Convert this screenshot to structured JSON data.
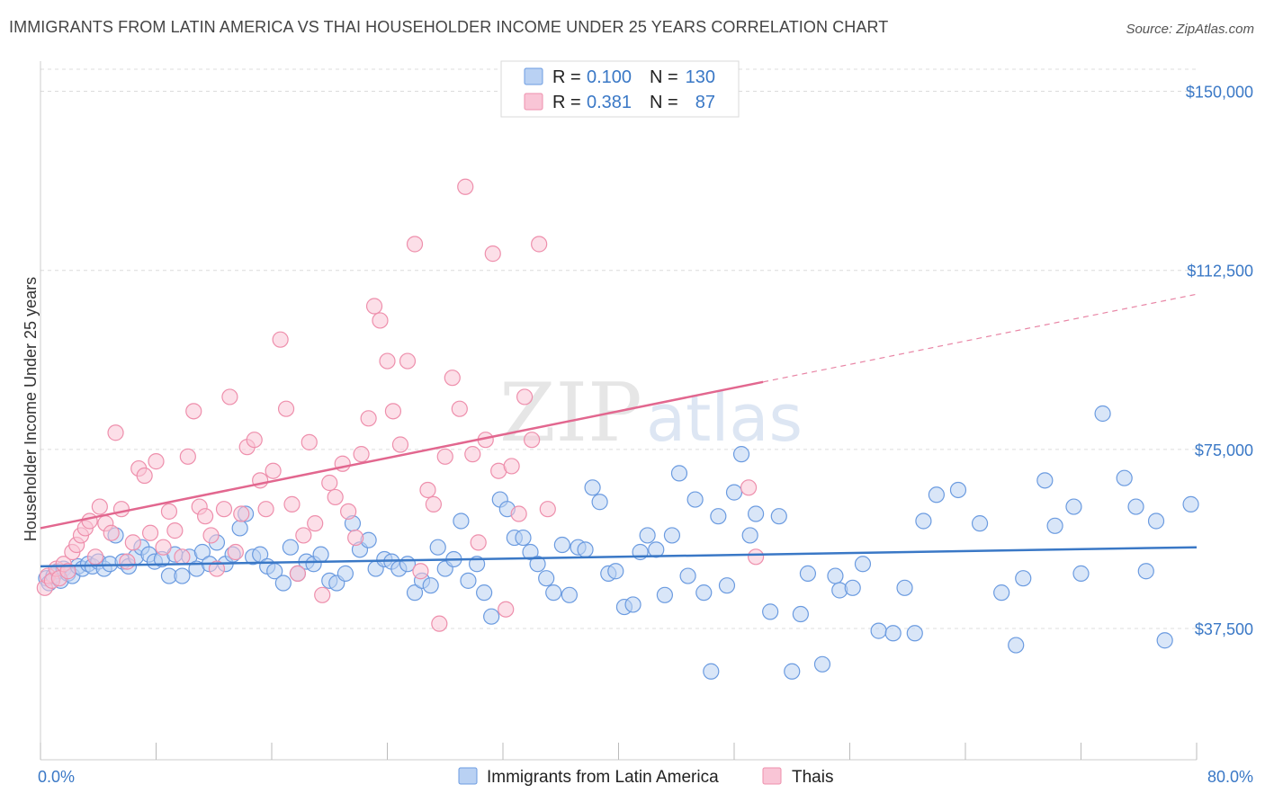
{
  "title": "IMMIGRANTS FROM LATIN AMERICA VS THAI HOUSEHOLDER INCOME UNDER 25 YEARS CORRELATION CHART",
  "source": "Source: ZipAtlas.com",
  "watermark": {
    "part1": "ZIP",
    "part2": "atlas"
  },
  "legend": {
    "r_label": "R =",
    "n_label": "N =",
    "entries": [
      {
        "r": "0.100",
        "n": "130",
        "fill": "#b9d1f3",
        "stroke": "#6b9be0"
      },
      {
        "r": "0.381",
        "n": "87",
        "fill": "#f9c5d6",
        "stroke": "#ee8fac"
      }
    ]
  },
  "chart_data": {
    "type": "scatter",
    "ylabel": "Householder Income Under 25 years",
    "xlim": [
      0,
      80
    ],
    "ylim": [
      10000,
      155000
    ],
    "x_tick_labels": [
      {
        "value": 0,
        "label": "0.0%"
      },
      {
        "value": 80,
        "label": "80.0%"
      }
    ],
    "y_tick_labels": [
      {
        "value": 37500,
        "label": "$37,500"
      },
      {
        "value": 75000,
        "label": "$75,000"
      },
      {
        "value": 112500,
        "label": "$112,500"
      },
      {
        "value": 150000,
        "label": "$150,000"
      }
    ],
    "grid": true,
    "legend_position": "top-center",
    "series": [
      {
        "name": "Immigrants from Latin America",
        "color": "#3a78c6",
        "fill": "#b9d1f3",
        "stroke": "#6b9be0",
        "trend": {
          "x": [
            0,
            80
          ],
          "y": [
            50500,
            54500
          ],
          "dashed_from": null
        },
        "points": [
          [
            0.4,
            48000
          ],
          [
            0.6,
            47000
          ],
          [
            0.9,
            48500
          ],
          [
            1.2,
            49500
          ],
          [
            1.4,
            47500
          ],
          [
            1.6,
            50000
          ],
          [
            1.9,
            49000
          ],
          [
            2.2,
            48500
          ],
          [
            2.6,
            50500
          ],
          [
            2.9,
            50000
          ],
          [
            3.3,
            51000
          ],
          [
            3.6,
            50500
          ],
          [
            4.0,
            51500
          ],
          [
            4.4,
            50000
          ],
          [
            4.8,
            51000
          ],
          [
            5.2,
            57000
          ],
          [
            5.7,
            51500
          ],
          [
            6.1,
            50500
          ],
          [
            6.6,
            52500
          ],
          [
            7.0,
            54500
          ],
          [
            7.5,
            53000
          ],
          [
            7.9,
            51500
          ],
          [
            8.4,
            52000
          ],
          [
            8.9,
            48500
          ],
          [
            9.3,
            53000
          ],
          [
            9.8,
            48500
          ],
          [
            10.3,
            52500
          ],
          [
            10.8,
            50000
          ],
          [
            11.2,
            53500
          ],
          [
            11.7,
            51000
          ],
          [
            12.2,
            55500
          ],
          [
            12.8,
            51000
          ],
          [
            13.3,
            53000
          ],
          [
            13.8,
            58500
          ],
          [
            14.2,
            61500
          ],
          [
            14.7,
            52500
          ],
          [
            15.2,
            53000
          ],
          [
            15.7,
            50500
          ],
          [
            16.2,
            49500
          ],
          [
            16.8,
            47000
          ],
          [
            17.3,
            54500
          ],
          [
            17.8,
            49000
          ],
          [
            18.4,
            51500
          ],
          [
            18.9,
            51000
          ],
          [
            19.4,
            53000
          ],
          [
            20.0,
            47500
          ],
          [
            20.5,
            47000
          ],
          [
            21.1,
            49000
          ],
          [
            21.6,
            59500
          ],
          [
            22.1,
            54000
          ],
          [
            22.7,
            56000
          ],
          [
            23.2,
            50000
          ],
          [
            23.8,
            52000
          ],
          [
            24.3,
            51500
          ],
          [
            24.8,
            50000
          ],
          [
            25.4,
            51000
          ],
          [
            25.9,
            45000
          ],
          [
            26.4,
            47500
          ],
          [
            27.0,
            46500
          ],
          [
            27.5,
            54500
          ],
          [
            28.0,
            50000
          ],
          [
            28.6,
            52000
          ],
          [
            29.1,
            60000
          ],
          [
            29.6,
            47500
          ],
          [
            30.2,
            51000
          ],
          [
            30.7,
            45000
          ],
          [
            31.2,
            40000
          ],
          [
            31.8,
            64500
          ],
          [
            32.3,
            62500
          ],
          [
            32.8,
            56500
          ],
          [
            33.4,
            56500
          ],
          [
            33.9,
            53500
          ],
          [
            34.4,
            51000
          ],
          [
            35.0,
            48000
          ],
          [
            35.5,
            45000
          ],
          [
            36.1,
            55000
          ],
          [
            36.6,
            44500
          ],
          [
            37.2,
            54500
          ],
          [
            37.7,
            54000
          ],
          [
            38.2,
            67000
          ],
          [
            38.7,
            64000
          ],
          [
            39.3,
            49000
          ],
          [
            39.8,
            49500
          ],
          [
            40.4,
            42000
          ],
          [
            41.0,
            42500
          ],
          [
            41.5,
            53500
          ],
          [
            42.0,
            57000
          ],
          [
            42.6,
            54000
          ],
          [
            43.2,
            44500
          ],
          [
            43.7,
            57000
          ],
          [
            44.2,
            70000
          ],
          [
            44.8,
            48500
          ],
          [
            45.3,
            64500
          ],
          [
            45.9,
            45000
          ],
          [
            46.4,
            28500
          ],
          [
            46.9,
            61000
          ],
          [
            47.5,
            46500
          ],
          [
            48.0,
            66000
          ],
          [
            48.5,
            74000
          ],
          [
            49.1,
            57000
          ],
          [
            49.5,
            61500
          ],
          [
            50.5,
            41000
          ],
          [
            51.1,
            61000
          ],
          [
            52.0,
            28500
          ],
          [
            52.6,
            40500
          ],
          [
            53.1,
            49000
          ],
          [
            54.1,
            30000
          ],
          [
            55.0,
            48500
          ],
          [
            55.3,
            45500
          ],
          [
            56.2,
            46000
          ],
          [
            56.9,
            51000
          ],
          [
            58.0,
            37000
          ],
          [
            59.0,
            36500
          ],
          [
            59.8,
            46000
          ],
          [
            60.5,
            36500
          ],
          [
            61.1,
            60000
          ],
          [
            62.0,
            65500
          ],
          [
            63.5,
            66500
          ],
          [
            65.0,
            59500
          ],
          [
            66.5,
            45000
          ],
          [
            67.5,
            34000
          ],
          [
            68.0,
            48000
          ],
          [
            69.5,
            68500
          ],
          [
            70.2,
            59000
          ],
          [
            71.5,
            63000
          ],
          [
            72.0,
            49000
          ],
          [
            73.5,
            82500
          ],
          [
            75.0,
            69000
          ],
          [
            75.8,
            63000
          ],
          [
            76.5,
            49500
          ],
          [
            77.2,
            60000
          ],
          [
            77.8,
            35000
          ],
          [
            79.6,
            63500
          ]
        ]
      },
      {
        "name": "Thais",
        "color": "#e2678f",
        "fill": "#f9c5d6",
        "stroke": "#ee8fac",
        "trend": {
          "x": [
            0,
            80
          ],
          "y": [
            58500,
            107500
          ],
          "dashed_from": 50
        },
        "points": [
          [
            0.3,
            46000
          ],
          [
            0.5,
            48500
          ],
          [
            0.8,
            47500
          ],
          [
            1.1,
            50000
          ],
          [
            1.3,
            48000
          ],
          [
            1.6,
            51000
          ],
          [
            1.9,
            49500
          ],
          [
            2.2,
            53500
          ],
          [
            2.5,
            55000
          ],
          [
            2.8,
            57000
          ],
          [
            3.1,
            58500
          ],
          [
            3.4,
            60000
          ],
          [
            3.8,
            52500
          ],
          [
            4.1,
            63000
          ],
          [
            4.5,
            59500
          ],
          [
            4.9,
            57500
          ],
          [
            5.2,
            78500
          ],
          [
            5.6,
            62500
          ],
          [
            6.0,
            51500
          ],
          [
            6.4,
            55500
          ],
          [
            6.8,
            71000
          ],
          [
            7.2,
            69500
          ],
          [
            7.6,
            57500
          ],
          [
            8.0,
            72500
          ],
          [
            8.5,
            54500
          ],
          [
            8.9,
            62000
          ],
          [
            9.3,
            58000
          ],
          [
            9.8,
            52500
          ],
          [
            10.2,
            73500
          ],
          [
            10.6,
            83000
          ],
          [
            11.0,
            63000
          ],
          [
            11.4,
            61000
          ],
          [
            11.8,
            57000
          ],
          [
            12.2,
            50000
          ],
          [
            12.7,
            62500
          ],
          [
            13.1,
            86000
          ],
          [
            13.5,
            53500
          ],
          [
            13.9,
            61500
          ],
          [
            14.3,
            75500
          ],
          [
            14.8,
            77000
          ],
          [
            15.2,
            68500
          ],
          [
            15.6,
            62500
          ],
          [
            16.1,
            70500
          ],
          [
            16.6,
            98000
          ],
          [
            17.0,
            83500
          ],
          [
            17.4,
            63500
          ],
          [
            17.8,
            49000
          ],
          [
            18.2,
            57000
          ],
          [
            18.6,
            76500
          ],
          [
            19.0,
            59500
          ],
          [
            19.5,
            44500
          ],
          [
            20.0,
            68000
          ],
          [
            20.4,
            65000
          ],
          [
            20.9,
            72000
          ],
          [
            21.3,
            62000
          ],
          [
            21.8,
            56500
          ],
          [
            22.2,
            74000
          ],
          [
            22.7,
            81500
          ],
          [
            23.1,
            105000
          ],
          [
            23.5,
            102000
          ],
          [
            24.0,
            93500
          ],
          [
            24.4,
            83000
          ],
          [
            24.9,
            76000
          ],
          [
            25.4,
            93500
          ],
          [
            25.9,
            118000
          ],
          [
            26.3,
            49500
          ],
          [
            26.8,
            66500
          ],
          [
            27.2,
            63500
          ],
          [
            27.6,
            38500
          ],
          [
            28.0,
            73500
          ],
          [
            28.5,
            90000
          ],
          [
            29.0,
            83500
          ],
          [
            29.4,
            130000
          ],
          [
            29.9,
            74000
          ],
          [
            30.3,
            55500
          ],
          [
            30.8,
            77000
          ],
          [
            31.3,
            116000
          ],
          [
            31.7,
            70500
          ],
          [
            32.2,
            41500
          ],
          [
            32.6,
            71500
          ],
          [
            33.1,
            61500
          ],
          [
            33.5,
            86000
          ],
          [
            34.0,
            77000
          ],
          [
            34.5,
            118000
          ],
          [
            35.1,
            62500
          ],
          [
            49.0,
            67000
          ],
          [
            49.5,
            52500
          ]
        ]
      }
    ]
  }
}
